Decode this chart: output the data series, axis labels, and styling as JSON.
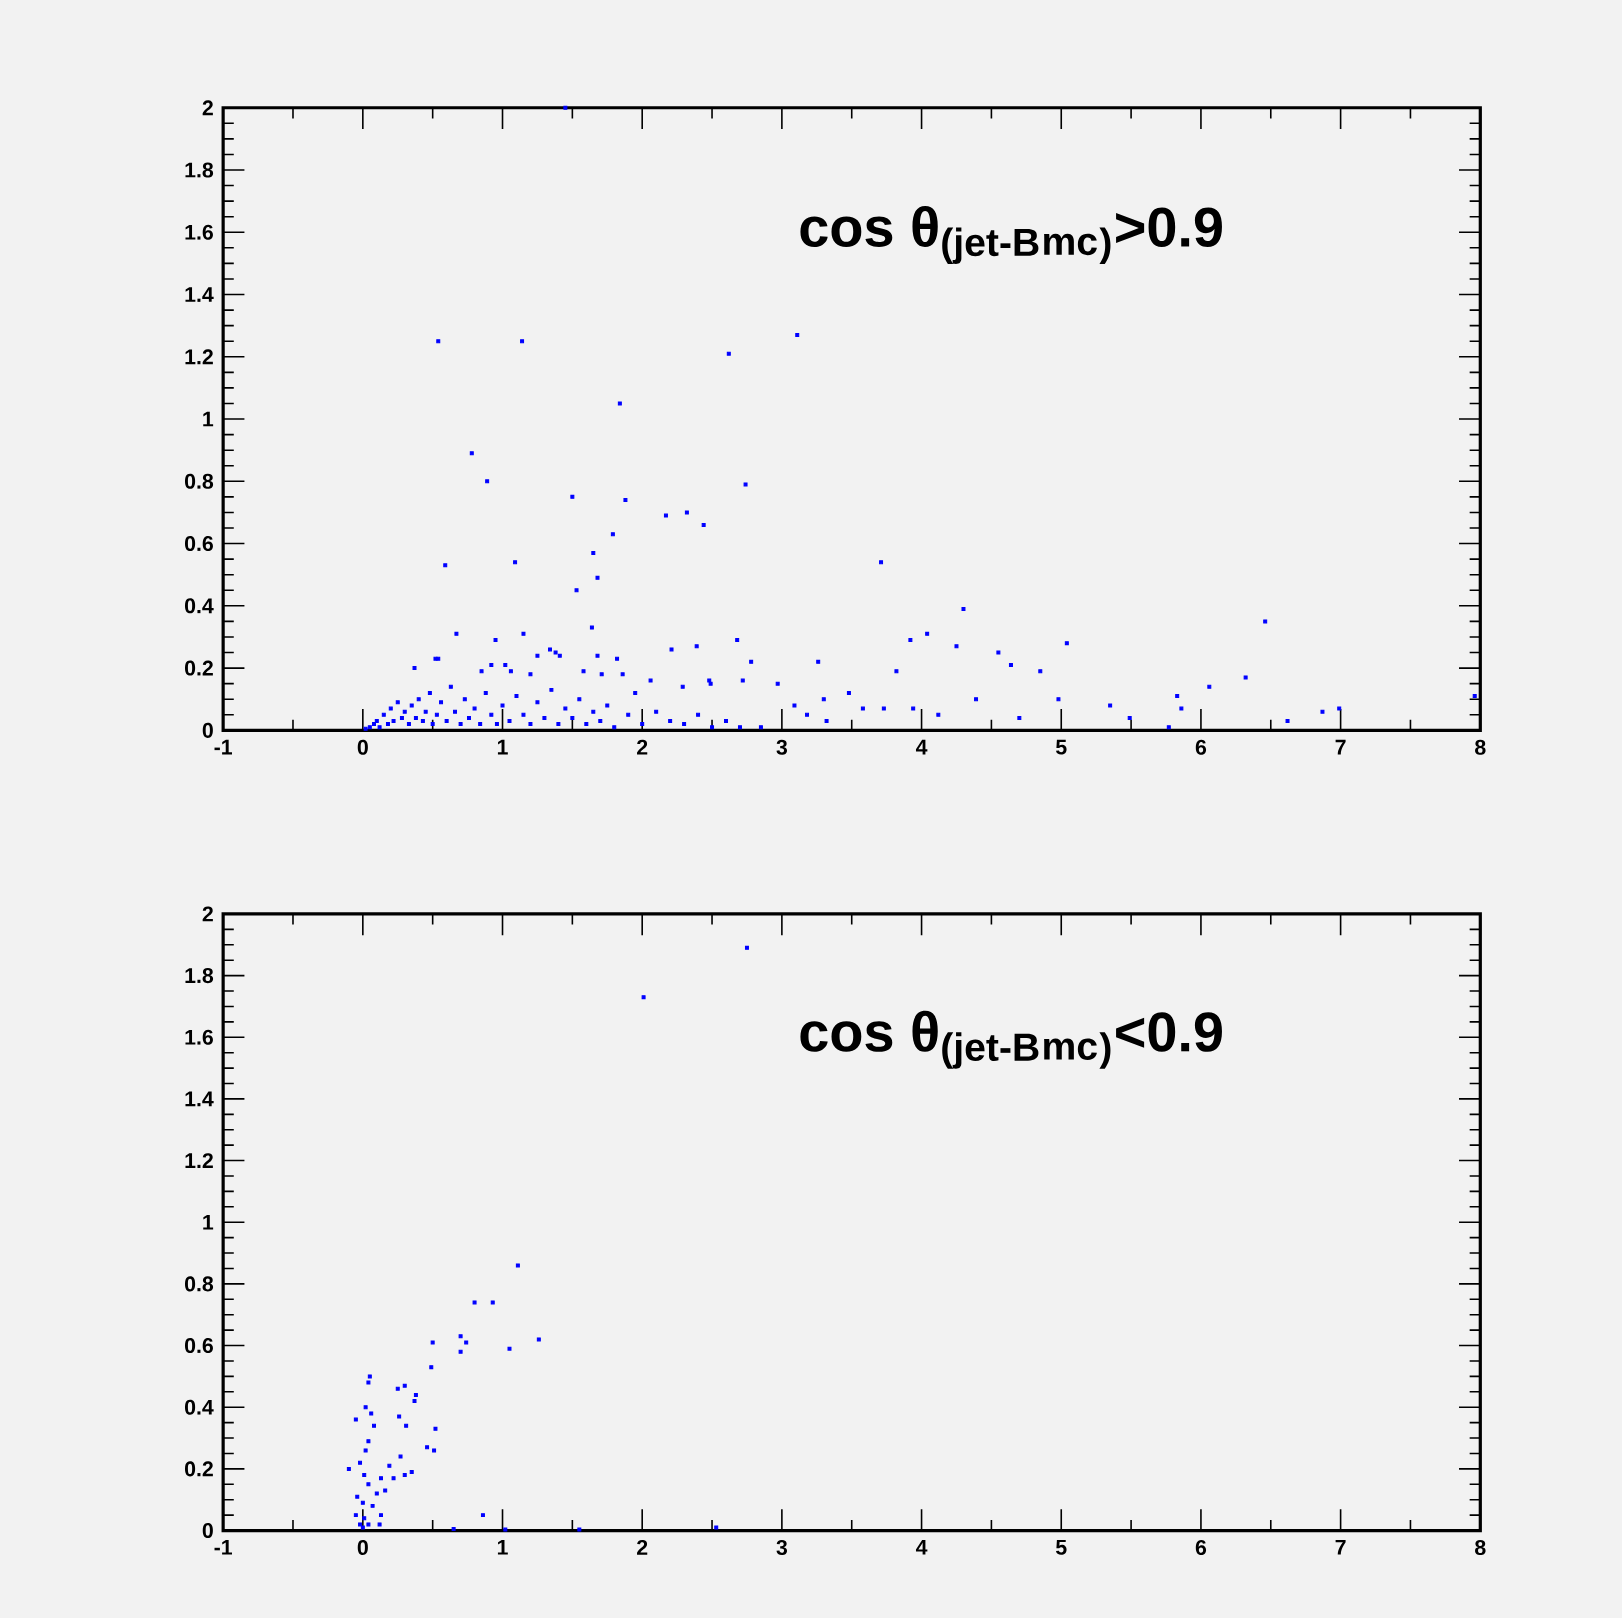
{
  "chart_data": [
    {
      "type": "scatter",
      "title": "cos θ$_{(jet-B}$$_{mc}$$_{)}$>0.9",
      "xlim": [
        -1,
        8
      ],
      "ylim": [
        0,
        2
      ],
      "xticks": [
        -1,
        0,
        1,
        2,
        3,
        4,
        5,
        6,
        7,
        8
      ],
      "yticks": [
        0,
        0.2,
        0.4,
        0.6,
        0.8,
        1,
        1.2,
        1.4,
        1.6,
        1.8,
        2
      ],
      "marker": "square",
      "series": [
        {
          "color": "#0000ff",
          "x": [
            1.45,
            0.54,
            1.14,
            2.62,
            3.11,
            1.84,
            0.78,
            0.89,
            1.5,
            1.88,
            2.74,
            2.17,
            2.32,
            2.44,
            1.79,
            1.65,
            1.68,
            1.53,
            0.59,
            1.09,
            3.71,
            1.64,
            4.3,
            6.46,
            0.67,
            0.95,
            1.15,
            2.68,
            3.92,
            4.04,
            5.04,
            4.25,
            4.55,
            4.64,
            4.85,
            3.26,
            2.78,
            2.21,
            2.39,
            0.37,
            0.54,
            6.32,
            6.06,
            5.83,
            4.98,
            5.35,
            6.99,
            6.87,
            7.96,
            6.62,
            5.86,
            5.49,
            5.77,
            4.7,
            4.39,
            4.12,
            3.94,
            3.73,
            3.48,
            3.32,
            3.18,
            2.97,
            2.72,
            2.49,
            2.06,
            1.82,
            1.68,
            1.38,
            1.25,
            1.02,
            0.85,
            0.52,
            0.92,
            1.06,
            1.2,
            1.34,
            1.41,
            1.58,
            1.71,
            1.86,
            1.95,
            2.29,
            2.48,
            3.09,
            3.3,
            3.58,
            3.82,
            0.02,
            0.05,
            0.08,
            0.1,
            0.12,
            0.15,
            0.18,
            0.2,
            0.22,
            0.25,
            0.28,
            0.3,
            0.33,
            0.35,
            0.38,
            0.4,
            0.43,
            0.45,
            0.48,
            0.5,
            0.53,
            0.56,
            0.6,
            0.63,
            0.66,
            0.7,
            0.73,
            0.76,
            0.8,
            0.84,
            0.88,
            0.92,
            0.96,
            1.0,
            1.05,
            1.1,
            1.15,
            1.2,
            1.25,
            1.3,
            1.35,
            1.4,
            1.45,
            1.5,
            1.55,
            1.6,
            1.65,
            1.7,
            1.75,
            1.8,
            1.9,
            2.0,
            2.1,
            2.2,
            2.3,
            2.4,
            2.5,
            2.6,
            2.7,
            2.85
          ],
          "values": [
            2.0,
            1.25,
            1.25,
            1.21,
            1.27,
            1.05,
            0.89,
            0.8,
            0.75,
            0.74,
            0.79,
            0.69,
            0.7,
            0.66,
            0.63,
            0.57,
            0.49,
            0.45,
            0.53,
            0.54,
            0.54,
            0.33,
            0.39,
            0.35,
            0.31,
            0.29,
            0.31,
            0.29,
            0.29,
            0.31,
            0.28,
            0.27,
            0.25,
            0.21,
            0.19,
            0.22,
            0.22,
            0.26,
            0.27,
            0.2,
            0.23,
            0.17,
            0.14,
            0.11,
            0.1,
            0.08,
            0.07,
            0.06,
            0.11,
            0.03,
            0.07,
            0.04,
            0.01,
            0.04,
            0.1,
            0.05,
            0.07,
            0.07,
            0.12,
            0.03,
            0.05,
            0.15,
            0.16,
            0.15,
            0.16,
            0.23,
            0.24,
            0.25,
            0.24,
            0.21,
            0.19,
            0.23,
            0.21,
            0.19,
            0.18,
            0.26,
            0.24,
            0.19,
            0.18,
            0.18,
            0.12,
            0.14,
            0.16,
            0.08,
            0.1,
            0.07,
            0.19,
            0.005,
            0.01,
            0.02,
            0.03,
            0.01,
            0.05,
            0.02,
            0.07,
            0.03,
            0.09,
            0.04,
            0.06,
            0.02,
            0.08,
            0.04,
            0.1,
            0.03,
            0.06,
            0.12,
            0.02,
            0.05,
            0.09,
            0.03,
            0.14,
            0.06,
            0.02,
            0.1,
            0.04,
            0.07,
            0.02,
            0.12,
            0.05,
            0.02,
            0.08,
            0.03,
            0.11,
            0.05,
            0.02,
            0.09,
            0.04,
            0.13,
            0.02,
            0.07,
            0.04,
            0.1,
            0.02,
            0.06,
            0.03,
            0.08,
            0.01,
            0.05,
            0.02,
            0.06,
            0.03,
            0.02,
            0.05,
            0.01,
            0.03,
            0.01,
            0.01
          ]
        }
      ]
    },
    {
      "type": "scatter",
      "title": "cos θ$_{(jet-B}$$_{mc}$$_{)}$<0.9",
      "xlim": [
        -1,
        8
      ],
      "ylim": [
        0,
        2
      ],
      "xticks": [
        -1,
        0,
        1,
        2,
        3,
        4,
        5,
        6,
        7,
        8
      ],
      "yticks": [
        0,
        0.2,
        0.4,
        0.6,
        0.8,
        1,
        1.2,
        1.4,
        1.6,
        1.8,
        2
      ],
      "marker": "square",
      "series": [
        {
          "color": "#0000ff",
          "x": [
            2.75,
            2.01,
            1.11,
            0.8,
            0.93,
            0.7,
            0.74,
            0.7,
            1.26,
            1.05,
            0.5,
            0.49,
            0.05,
            0.04,
            0.25,
            0.3,
            0.38,
            0.37,
            0.02,
            0.06,
            -0.05,
            0.08,
            0.26,
            0.31,
            0.52,
            0.04,
            0.02,
            0.46,
            0.51,
            0.27,
            -0.02,
            -0.1,
            0.01,
            0.19,
            0.35,
            0.3,
            0.13,
            0.04,
            0.16,
            0.1,
            -0.04,
            0,
            0.07,
            -0.05,
            0.01,
            0.13,
            0.04,
            0,
            -0.02,
            0.12,
            0.86,
            0.65,
            1.02,
            1.55,
            2.53,
            0.22
          ],
          "values": [
            1.89,
            1.73,
            0.86,
            0.74,
            0.74,
            0.63,
            0.61,
            0.58,
            0.62,
            0.59,
            0.61,
            0.53,
            0.5,
            0.48,
            0.46,
            0.47,
            0.44,
            0.42,
            0.4,
            0.38,
            0.36,
            0.34,
            0.37,
            0.34,
            0.33,
            0.29,
            0.26,
            0.27,
            0.26,
            0.24,
            0.22,
            0.2,
            0.18,
            0.21,
            0.19,
            0.18,
            0.17,
            0.15,
            0.13,
            0.12,
            0.11,
            0.09,
            0.08,
            0.05,
            0.04,
            0.05,
            0.02,
            0.01,
            0.02,
            0.02,
            0.05,
            0.005,
            0.003,
            0.003,
            0.01,
            0.17
          ]
        }
      ]
    }
  ]
}
